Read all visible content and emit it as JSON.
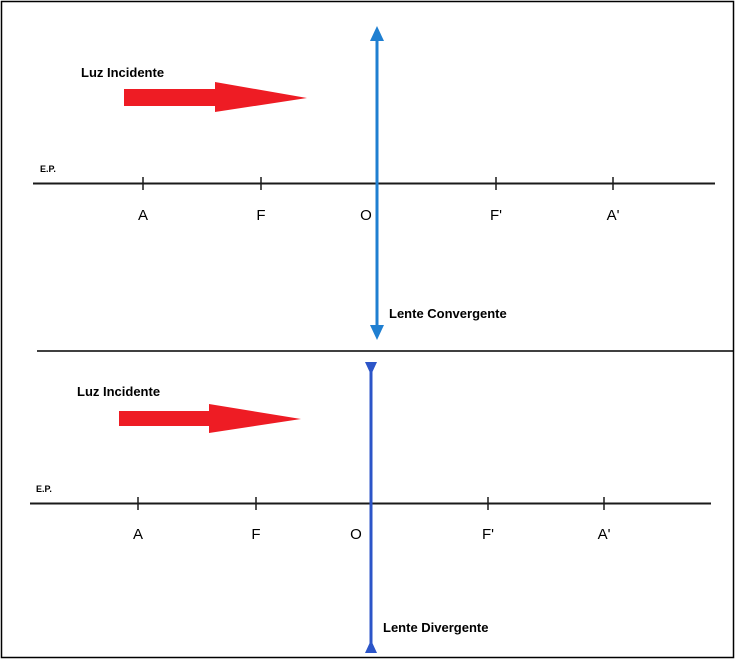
{
  "colors": {
    "frame": "#000000",
    "axis": "#1a1a1a",
    "arrow": "#ee1c24",
    "lens_convergent": "#1f7fd1",
    "lens_divergent": "#2c55c8"
  },
  "panels": [
    {
      "id": "convergente",
      "incident_label": "Luz Incidente",
      "ep_label": "E.P.",
      "points": [
        "A",
        "F",
        "O",
        "F'",
        "A'"
      ],
      "lens_label": "Lente Convergente",
      "lens_icon": "double-arrow-outward-icon"
    },
    {
      "id": "divergente",
      "incident_label": "Luz Incidente",
      "ep_label": "E.P.",
      "points": [
        "A",
        "F",
        "O",
        "F'",
        "A'"
      ],
      "lens_label": "Lente Divergente",
      "lens_icon": "double-arrow-inward-icon"
    }
  ]
}
